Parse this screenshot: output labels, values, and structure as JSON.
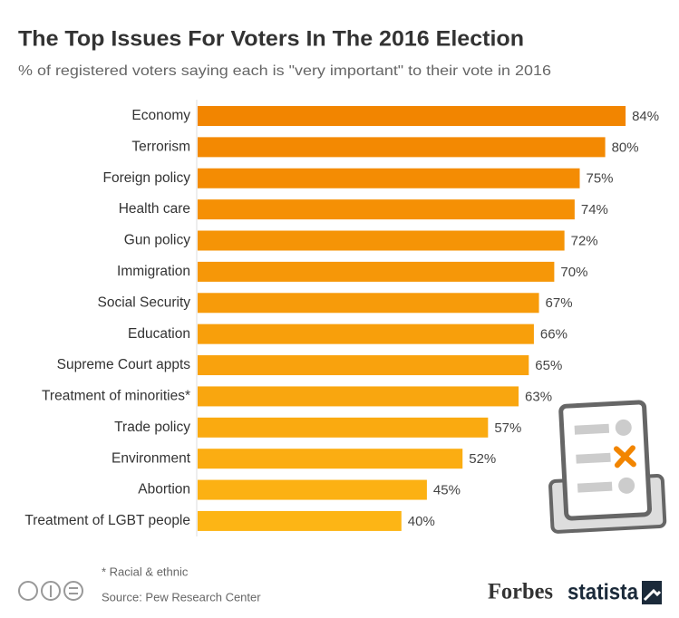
{
  "chart_data": {
    "type": "bar",
    "orientation": "horizontal",
    "title": "The Top Issues For Voters In The 2016 Election",
    "subtitle": "% of registered voters saying each is \"very important\" to their vote in 2016",
    "categories": [
      "Economy",
      "Terrorism",
      "Foreign policy",
      "Health care",
      "Gun policy",
      "Immigration",
      "Social Security",
      "Education",
      "Supreme Court appts",
      "Treatment of minorities*",
      "Trade policy",
      "Environment",
      "Abortion",
      "Treatment of LGBT people"
    ],
    "values": [
      84,
      80,
      75,
      74,
      72,
      70,
      67,
      66,
      65,
      63,
      57,
      52,
      45,
      40
    ],
    "value_labels": [
      "84%",
      "80%",
      "75%",
      "74%",
      "72%",
      "70%",
      "67%",
      "66%",
      "65%",
      "63%",
      "57%",
      "52%",
      "45%",
      "40%"
    ],
    "colors": [
      "#f28500",
      "#f38902",
      "#f48c03",
      "#f59005",
      "#f59406",
      "#f69708",
      "#f79b0a",
      "#f89f0b",
      "#f9a20d",
      "#f9a60f",
      "#faaa10",
      "#fbad12",
      "#fcb113",
      "#fdb515"
    ],
    "footnote": "* Racial & ethnic",
    "source": "Source: Pew Research Center",
    "brand1": "Forbes",
    "brand2": "statista"
  }
}
